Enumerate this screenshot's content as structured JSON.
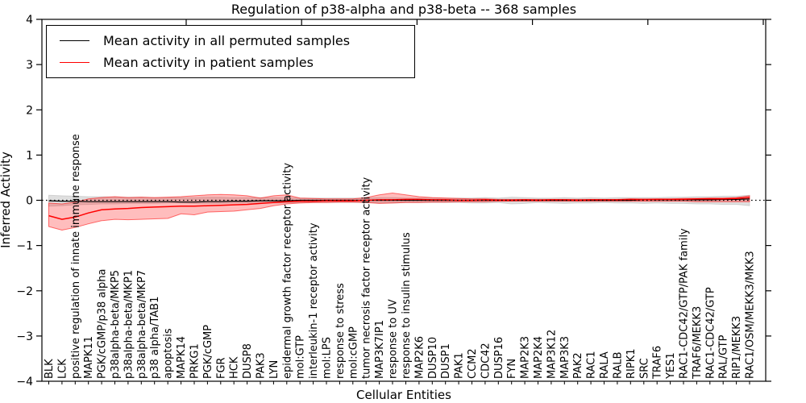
{
  "chart_data": {
    "type": "line",
    "title": "Regulation of p38-alpha and p38-beta -- 368 samples",
    "xlabel": "Cellular Entities",
    "ylabel": "Inferred Activity",
    "ylim": [
      -4,
      4
    ],
    "y_tick_values": [
      -4,
      -3,
      -2,
      -1,
      0,
      1,
      2,
      3,
      4
    ],
    "y_tick_labels": [
      "−4",
      "−3",
      "−2",
      "−1",
      "0",
      "1",
      "2",
      "3",
      "4"
    ],
    "grid": false,
    "legend_position": "upper left",
    "zero_line": {
      "style": "dotted",
      "color": "#000000",
      "y": 0
    },
    "categories": [
      "BLK",
      "LCK",
      "positive regulation of innate immune response",
      "MAPK11",
      "PGK/cGMP/p38 alpha",
      "p38alpha-beta/MKP5",
      "p38alpha-beta/MKP1",
      "p38alpha-beta/MKP7",
      "p38 alpha/TAB1",
      "apoptosis",
      "MAPK14",
      "PRKG1",
      "PGK/cGMP",
      "FGR",
      "HCK",
      "DUSP8",
      "PAK3",
      "LYN",
      "epidermal growth factor receptor activity",
      "mol:GTP",
      "interleukin-1 receptor activity",
      "mol:LPS",
      "response to stress",
      "mol:cGMP",
      "tumor necrosis factor receptor activity",
      "MAP3K7IP1",
      "response to UV",
      "response to insulin stimulus",
      "MAP2K6",
      "DUSP10",
      "DUSP1",
      "PAK1",
      "CCM2",
      "CDC42",
      "DUSP16",
      "FYN",
      "MAP2K3",
      "MAP2K4",
      "MAP3K12",
      "MAP3K3",
      "PAK2",
      "RAC1",
      "RALA",
      "RALB",
      "RIPK1",
      "SRC",
      "TRAF6",
      "YES1",
      "RAC1-CDC42/GTP/PAK family",
      "TRAF6/MEKK3",
      "RAC1-CDC42/GTP",
      "RAL/GTP",
      "RIP1/MEKK3",
      "RAC1/OSM/MEKK3/MKK3"
    ],
    "series": [
      {
        "name": "Mean activity in all permuted samples",
        "color": "#000000",
        "values": [
          -0.01,
          -0.02,
          -0.02,
          -0.03,
          -0.03,
          -0.03,
          -0.03,
          -0.03,
          -0.03,
          -0.03,
          -0.04,
          -0.04,
          -0.03,
          -0.03,
          -0.02,
          -0.02,
          -0.01,
          -0.01,
          -0.01,
          0,
          0,
          0,
          0,
          0,
          0,
          0,
          0,
          0,
          0,
          0,
          0,
          0,
          0,
          0,
          0,
          0,
          0,
          0,
          0,
          0,
          0,
          0,
          0,
          0,
          0,
          0.01,
          0.01,
          0.01,
          0.01,
          0.01,
          0.01,
          0.02,
          0.02,
          0.03
        ]
      },
      {
        "name": "Mean activity in patient samples",
        "color": "#ff0000",
        "values": [
          -0.34,
          -0.42,
          -0.37,
          -0.28,
          -0.21,
          -0.19,
          -0.18,
          -0.16,
          -0.15,
          -0.14,
          -0.13,
          -0.13,
          -0.12,
          -0.11,
          -0.1,
          -0.09,
          -0.07,
          -0.05,
          -0.03,
          -0.02,
          -0.02,
          -0.01,
          -0.01,
          -0.01,
          0,
          0.01,
          0.01,
          0.02,
          0.02,
          0.01,
          0.01,
          0,
          0,
          0.01,
          0,
          0,
          0.01,
          0,
          0.01,
          0.01,
          0,
          0.01,
          0.01,
          0.01,
          0.02,
          0.01,
          0.02,
          0.02,
          0.02,
          0.03,
          0.03,
          0.03,
          0.04,
          0.06
        ]
      }
    ],
    "bands": [
      {
        "name": "permuted samples spread",
        "color": "#aaaaaa",
        "hi": [
          0.11,
          0.1,
          0.09,
          0.08,
          0.08,
          0.07,
          0.07,
          0.07,
          0.06,
          0.06,
          0.06,
          0.06,
          0.07,
          0.07,
          0.06,
          0.06,
          0.06,
          0.06,
          0.06,
          0.05,
          0.05,
          0.05,
          0.05,
          0.05,
          0.05,
          0.06,
          0.06,
          0.05,
          0.05,
          0.05,
          0.05,
          0.05,
          0.05,
          0.06,
          0.05,
          0.07,
          0.06,
          0.05,
          0.05,
          0.06,
          0.05,
          0.06,
          0.05,
          0.06,
          0.06,
          0.06,
          0.06,
          0.07,
          0.07,
          0.08,
          0.08,
          0.09,
          0.09,
          0.11
        ],
        "lo": [
          -0.13,
          -0.12,
          -0.1,
          -0.09,
          -0.08,
          -0.08,
          -0.07,
          -0.07,
          -0.07,
          -0.06,
          -0.06,
          -0.07,
          -0.07,
          -0.07,
          -0.06,
          -0.06,
          -0.06,
          -0.06,
          -0.06,
          -0.05,
          -0.05,
          -0.05,
          -0.05,
          -0.05,
          -0.05,
          -0.06,
          -0.06,
          -0.05,
          -0.05,
          -0.05,
          -0.05,
          -0.05,
          -0.06,
          -0.06,
          -0.05,
          -0.08,
          -0.07,
          -0.05,
          -0.06,
          -0.07,
          -0.06,
          -0.06,
          -0.05,
          -0.06,
          -0.06,
          -0.07,
          -0.06,
          -0.07,
          -0.07,
          -0.08,
          -0.08,
          -0.09,
          -0.09,
          -0.12
        ]
      },
      {
        "name": "patient samples spread",
        "color": "#ff0000",
        "hi": [
          -0.06,
          -0.08,
          -0.04,
          0.03,
          0.06,
          0.08,
          0.06,
          0.07,
          0.06,
          0.07,
          0.08,
          0.1,
          0.12,
          0.13,
          0.12,
          0.1,
          0.05,
          0.1,
          0.12,
          0.05,
          0.04,
          0.03,
          0.03,
          0.03,
          0.06,
          0.12,
          0.16,
          0.12,
          0.08,
          0.06,
          0.05,
          0.04,
          0.03,
          0.03,
          0.02,
          0.02,
          0.02,
          0.02,
          0.02,
          0.02,
          0.02,
          0.02,
          0.02,
          0.02,
          0.03,
          0.03,
          0.03,
          0.03,
          0.04,
          0.04,
          0.05,
          0.05,
          0.06,
          0.1
        ],
        "lo": [
          -0.58,
          -0.66,
          -0.6,
          -0.52,
          -0.45,
          -0.42,
          -0.43,
          -0.42,
          -0.41,
          -0.4,
          -0.3,
          -0.32,
          -0.26,
          -0.25,
          -0.24,
          -0.21,
          -0.18,
          -0.12,
          -0.08,
          -0.06,
          -0.05,
          -0.05,
          -0.04,
          -0.04,
          -0.05,
          -0.07,
          -0.06,
          -0.05,
          -0.05,
          -0.04,
          -0.04,
          -0.03,
          -0.03,
          -0.03,
          -0.02,
          -0.02,
          -0.02,
          -0.02,
          -0.02,
          -0.02,
          -0.02,
          -0.02,
          -0.02,
          -0.02,
          -0.02,
          -0.02,
          -0.02,
          -0.02,
          -0.02,
          -0.03,
          -0.03,
          -0.03,
          -0.03,
          -0.03
        ]
      }
    ]
  }
}
